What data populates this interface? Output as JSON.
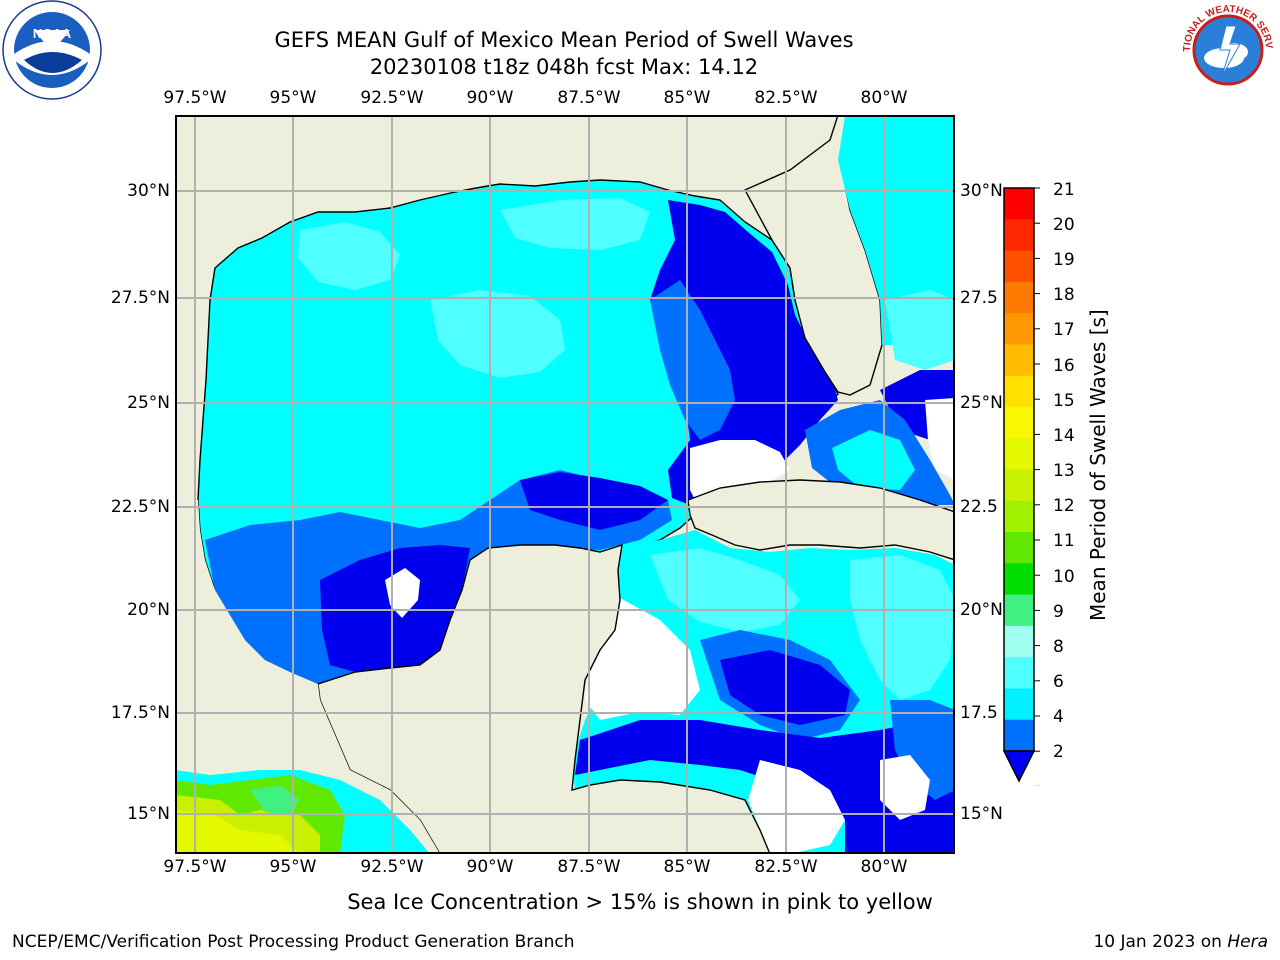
{
  "header": {
    "title_line1": "GEFS MEAN Gulf of Mexico Mean Period of Swell Waves",
    "title_line2": "20230108 t18z 048h fcst   Max: 14.12"
  },
  "logos": {
    "left": {
      "text": "NOAA",
      "ring": "NATIONAL OCEANIC AND ATMOSPHERIC ADMINISTRATION"
    },
    "right": {
      "ring": "NATIONAL WEATHER SERVICE"
    }
  },
  "map": {
    "lon_labels": [
      "97.5°W",
      "95°W",
      "92.5°W",
      "90°W",
      "87.5°W",
      "85°W",
      "82.5°W",
      "80°W"
    ],
    "lat_labels_left": [
      "30°N",
      "27.5°N",
      "25°N",
      "22.5°N",
      "20°N",
      "17.5°N",
      "15°N"
    ],
    "lat_labels_right": [
      "30°N",
      "27.5",
      "25°N",
      "22.5",
      "20°N",
      "17.5",
      "15°N"
    ],
    "colors": {
      "land": "#eeeedc",
      "ocean_mean": "#00ffff",
      "grid": "#b0b0b0",
      "coast": "#000000"
    }
  },
  "colorbar": {
    "title": "Mean Period of Swell Waves [s]",
    "labels": [
      "21",
      "20",
      "19",
      "18",
      "17",
      "16",
      "15",
      "14",
      "13",
      "12",
      "11",
      "10",
      "9",
      "8",
      "6",
      "4",
      "2"
    ],
    "colors": [
      "#ff0000",
      "#ff2800",
      "#ff5000",
      "#ff7800",
      "#ff9800",
      "#ffbc00",
      "#ffe000",
      "#f8f800",
      "#e4f800",
      "#c8f000",
      "#a0f000",
      "#60e800",
      "#00e000",
      "#40f080",
      "#a0fff0",
      "#50ffff",
      "#00f0ff",
      "#0070ff"
    ],
    "extend_color": "#0000ee"
  },
  "notes": {
    "ice": "Sea Ice Concentration > 15% is shown in pink to yellow"
  },
  "footer": {
    "left": "NCEP/EMC/Verification Post Processing Product Generation Branch",
    "right_prefix": "10 Jan 2023 on",
    "right_host": "Hera"
  }
}
